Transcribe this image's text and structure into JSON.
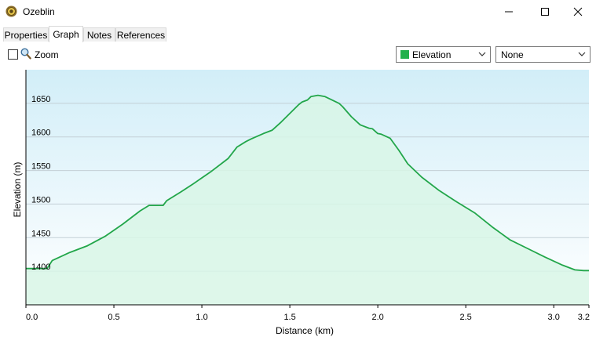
{
  "window": {
    "title": "Ozeblin"
  },
  "tabs": [
    {
      "label": "Properties",
      "active": false
    },
    {
      "label": "Graph",
      "active": true
    },
    {
      "label": "Notes",
      "active": false
    },
    {
      "label": "References",
      "active": false
    }
  ],
  "toolbar": {
    "zoom_label": "Zoom",
    "zoom_checked": false,
    "series_select": {
      "value": "Elevation",
      "swatch_color": "#22b14c"
    },
    "secondary_select": {
      "value": "None"
    }
  },
  "chart_data": {
    "type": "area",
    "title": "",
    "xlabel": "Distance  (km)",
    "ylabel": "Elevation (m)",
    "xlim": [
      0,
      3.2
    ],
    "ylim": [
      1350,
      1700
    ],
    "xticks": [
      "0.0",
      "0.5",
      "1.0",
      "1.5",
      "2.0",
      "2.5",
      "3.0",
      "3.2"
    ],
    "yticks": [
      "1400",
      "1450",
      "1500",
      "1550",
      "1600",
      "1650"
    ],
    "grid": true,
    "line_color": "#22a64a",
    "fill_color": "#d8f6e6",
    "series": [
      {
        "name": "Elevation",
        "x": [
          0,
          0.12,
          0.15,
          0.25,
          0.35,
          0.45,
          0.55,
          0.65,
          0.7,
          0.78,
          0.8,
          0.88,
          0.95,
          1.05,
          1.15,
          1.2,
          1.25,
          1.28,
          1.35,
          1.4,
          1.45,
          1.5,
          1.55,
          1.57,
          1.6,
          1.62,
          1.66,
          1.7,
          1.78,
          1.8,
          1.85,
          1.9,
          1.95,
          1.97,
          2.0,
          2.02,
          2.07,
          2.12,
          2.17,
          2.25,
          2.35,
          2.45,
          2.55,
          2.65,
          2.75,
          2.85,
          2.95,
          3.05,
          3.12,
          3.17,
          3.2
        ],
        "y": [
          1404,
          1404,
          1416,
          1428,
          1438,
          1452,
          1470,
          1490,
          1498,
          1498,
          1505,
          1518,
          1530,
          1548,
          1568,
          1585,
          1593,
          1597,
          1605,
          1610,
          1622,
          1635,
          1648,
          1652,
          1655,
          1660,
          1662,
          1660,
          1650,
          1645,
          1630,
          1618,
          1613,
          1612,
          1605,
          1604,
          1598,
          1580,
          1560,
          1540,
          1520,
          1503,
          1487,
          1466,
          1447,
          1434,
          1421,
          1409,
          1402,
          1401,
          1401
        ]
      }
    ]
  }
}
